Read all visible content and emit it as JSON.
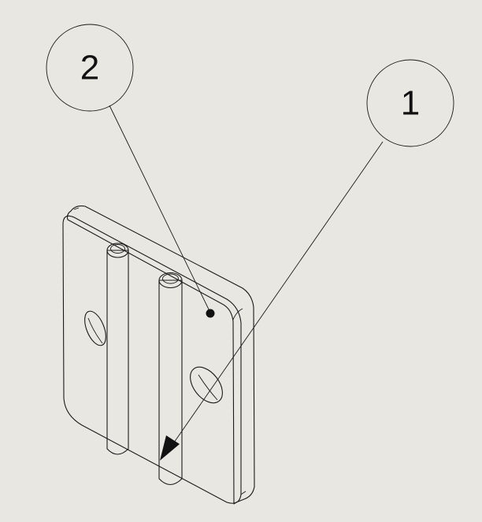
{
  "colors": {
    "background": "#e8e7e1",
    "line": "#1a1a1a",
    "part_fill": "#ffffff"
  },
  "balloons": [
    {
      "id": "balloon-2",
      "label": "2"
    },
    {
      "id": "balloon-1",
      "label": "1"
    }
  ]
}
